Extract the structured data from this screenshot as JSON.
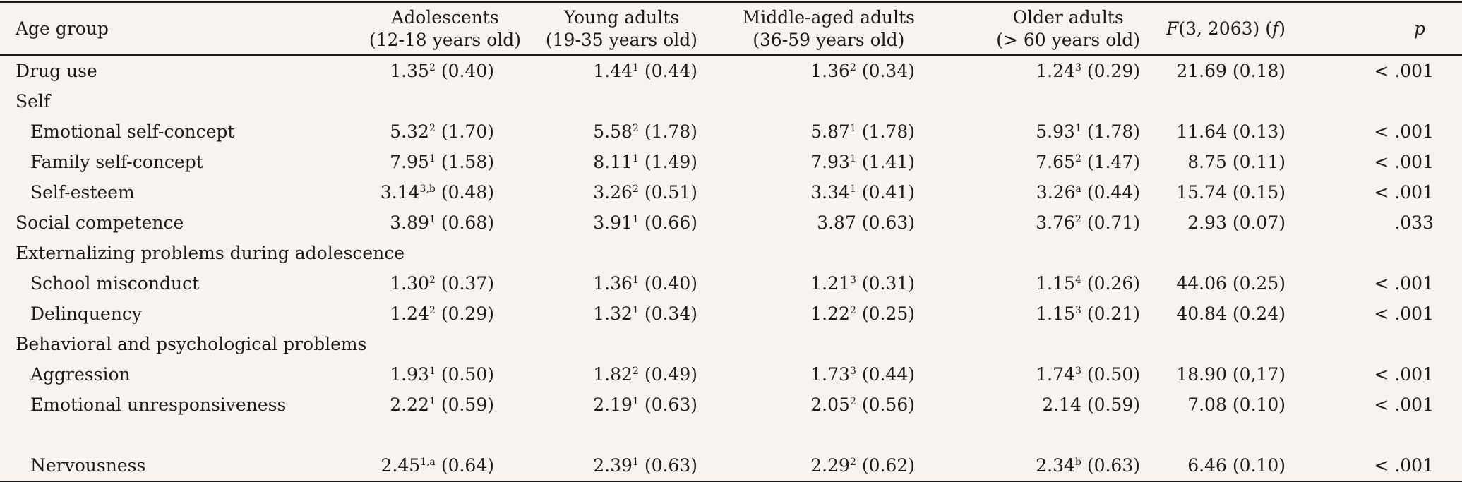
{
  "headers": {
    "age_group": "Age group",
    "groups": [
      {
        "name": "Adolescents",
        "range": "(12-18 years old)"
      },
      {
        "name": "Young adults",
        "range": "(19-35 years old)"
      },
      {
        "name": "Middle-aged adults",
        "range": "(36-59 years old)"
      },
      {
        "name": "Older adults",
        "range": "(> 60 years old)"
      }
    ],
    "f_label": "F",
    "f_df": "(3, 2063)",
    "f_effect": "f",
    "p_label": "p"
  },
  "rows": [
    {
      "label": "Drug use",
      "sub": false,
      "cells": [
        {
          "v": "1.35",
          "s": "2",
          "sd": "(0.40)"
        },
        {
          "v": "1.44",
          "s": "1",
          "sd": "(0.44)"
        },
        {
          "v": "1.36",
          "s": "2",
          "sd": "(0.34)"
        },
        {
          "v": "1.24",
          "s": "3",
          "sd": "(0.29)"
        }
      ],
      "f": "21.69 (0.18)",
      "p": "< .001"
    },
    {
      "label": "Self",
      "sub": false,
      "section": true
    },
    {
      "label": "Emotional self-concept",
      "sub": true,
      "cells": [
        {
          "v": "5.32",
          "s": "2",
          "sd": "(1.70)"
        },
        {
          "v": "5.58",
          "s": "2",
          "sd": "(1.78)"
        },
        {
          "v": "5.87",
          "s": "1",
          "sd": "(1.78)"
        },
        {
          "v": "5.93",
          "s": "1",
          "sd": "(1.78)"
        }
      ],
      "f": "11.64 (0.13)",
      "p": "< .001"
    },
    {
      "label": "Family self-concept",
      "sub": true,
      "cells": [
        {
          "v": "7.95",
          "s": "1",
          "sd": "(1.58)"
        },
        {
          "v": "8.11",
          "s": "1",
          "sd": "(1.49)"
        },
        {
          "v": "7.93",
          "s": "1",
          "sd": "(1.41)"
        },
        {
          "v": "7.65",
          "s": "2",
          "sd": "(1.47)"
        }
      ],
      "f": "8.75 (0.11)",
      "p": "< .001"
    },
    {
      "label": "Self-esteem",
      "sub": true,
      "cells": [
        {
          "v": "3.14",
          "s": "3,b",
          "sd": "(0.48)"
        },
        {
          "v": "3.26",
          "s": "2",
          "sd": "(0.51)"
        },
        {
          "v": "3.34",
          "s": "1",
          "sd": "(0.41)"
        },
        {
          "v": "3.26",
          "s": "a",
          "sd": "(0.44)"
        }
      ],
      "f": "15.74 (0.15)",
      "p": "< .001"
    },
    {
      "label": "Social competence",
      "sub": false,
      "cells": [
        {
          "v": "3.89",
          "s": "1",
          "sd": "(0.68)"
        },
        {
          "v": "3.91",
          "s": "1",
          "sd": "(0.66)"
        },
        {
          "v": "3.87",
          "s": "",
          "sd": "(0.63)"
        },
        {
          "v": "3.76",
          "s": "2",
          "sd": "(0.71)"
        }
      ],
      "f": "2.93 (0.07)",
      "p": ".033"
    },
    {
      "label": "Externalizing problems during adolescence",
      "sub": false,
      "section": true
    },
    {
      "label": "School misconduct",
      "sub": true,
      "cells": [
        {
          "v": "1.30",
          "s": "2",
          "sd": "(0.37)"
        },
        {
          "v": "1.36",
          "s": "1",
          "sd": "(0.40)"
        },
        {
          "v": "1.21",
          "s": "3",
          "sd": "(0.31)"
        },
        {
          "v": "1.15",
          "s": "4",
          "sd": "(0.26)"
        }
      ],
      "f": "44.06 (0.25)",
      "p": "< .001"
    },
    {
      "label": "Delinquency",
      "sub": true,
      "cells": [
        {
          "v": "1.24",
          "s": "2",
          "sd": "(0.29)"
        },
        {
          "v": "1.32",
          "s": "1",
          "sd": "(0.34)"
        },
        {
          "v": "1.22",
          "s": "2",
          "sd": "(0.25)"
        },
        {
          "v": "1.15",
          "s": "3",
          "sd": "(0.21)"
        }
      ],
      "f": "40.84 (0.24)",
      "p": "< .001"
    },
    {
      "label": "Behavioral and psychological problems",
      "sub": false,
      "section": true
    },
    {
      "label": "Aggression",
      "sub": true,
      "cells": [
        {
          "v": "1.93",
          "s": "1",
          "sd": "(0.50)"
        },
        {
          "v": "1.82",
          "s": "2",
          "sd": "(0.49)"
        },
        {
          "v": "1.73",
          "s": "3",
          "sd": "(0.44)"
        },
        {
          "v": "1.74",
          "s": "3",
          "sd": "(0.50)"
        }
      ],
      "f": "18.90 (0,17)",
      "p": "< .001"
    },
    {
      "label": "Emotional unresponsiveness",
      "sub": true,
      "wrap": true,
      "cells": [
        {
          "v": "2.22",
          "s": "1",
          "sd": "(0.59)"
        },
        {
          "v": "2.19",
          "s": "1",
          "sd": "(0.63)"
        },
        {
          "v": "2.05",
          "s": "2",
          "sd": "(0.56)"
        },
        {
          "v": "2.14",
          "s": "",
          "sd": "(0.59)"
        }
      ],
      "f": "7.08 (0.10)",
      "p": "< .001"
    },
    {
      "label": "Nervousness",
      "sub": true,
      "last": true,
      "cells": [
        {
          "v": "2.45",
          "s": "1,a",
          "sd": "(0.64)"
        },
        {
          "v": "2.39",
          "s": "1",
          "sd": "(0.63)"
        },
        {
          "v": "2.29",
          "s": "2",
          "sd": "(0.62)"
        },
        {
          "v": "2.34",
          "s": "b",
          "sd": "(0.63)"
        }
      ],
      "f": "6.46 (0.10)",
      "p": "< .001"
    }
  ]
}
